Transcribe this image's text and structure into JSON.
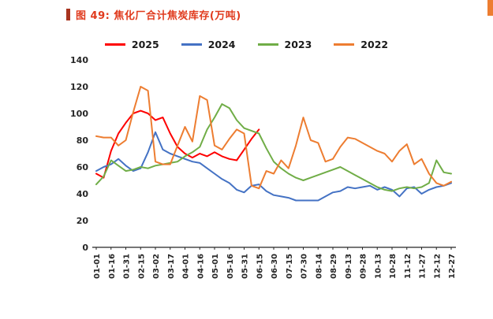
{
  "figure": {
    "title": "图 49: 焦化厂合计焦炭库存(万吨)",
    "title_color": "#e03a1d",
    "accent_bar_color": "#a8341f",
    "corner_bar_color": "#ed7d31"
  },
  "chart_data": {
    "type": "line",
    "title": "图 49: 焦化厂合计焦炭库存(万吨)",
    "xlabel": "",
    "ylabel": "",
    "ylim": [
      0,
      140
    ],
    "yticks": [
      0,
      20,
      40,
      60,
      80,
      100,
      120,
      140
    ],
    "grid": false,
    "legend_position": "top",
    "points_per_label": 2,
    "x_labels": [
      "01-01",
      "01-16",
      "01-31",
      "02-15",
      "03-02",
      "03-17",
      "04-01",
      "04-16",
      "05-01",
      "05-16",
      "05-31",
      "06-15",
      "06-30",
      "07-15",
      "07-30",
      "08-14",
      "08-29",
      "09-13",
      "09-28",
      "10-13",
      "10-28",
      "11-12",
      "11-27",
      "12-12",
      "12-27"
    ],
    "series": [
      {
        "name": "2025",
        "color": "#fe0000",
        "values": [
          55,
          52,
          72,
          85,
          93,
          100,
          102,
          100,
          95,
          97,
          85,
          75,
          70,
          67,
          70,
          68,
          71,
          68,
          66,
          65,
          73,
          81,
          88
        ]
      },
      {
        "name": "2024",
        "color": "#4472c4",
        "values": [
          57,
          60,
          62,
          66,
          61,
          57,
          59,
          71,
          86,
          73,
          70,
          68,
          66,
          64,
          63,
          59,
          55,
          51,
          48,
          43,
          41,
          46,
          47,
          42,
          39,
          38,
          37,
          35,
          35,
          35,
          35,
          38,
          41,
          42,
          45,
          44,
          45,
          46,
          43,
          45,
          43,
          38,
          44,
          45,
          40,
          43,
          45,
          46,
          48
        ]
      },
      {
        "name": "2023",
        "color": "#70ad47",
        "values": [
          47,
          53,
          65,
          61,
          57,
          58,
          60,
          59,
          61,
          62,
          63,
          64,
          68,
          71,
          75,
          88,
          97,
          107,
          104,
          95,
          89,
          87,
          85,
          74,
          64,
          59,
          55,
          52,
          50,
          52,
          54,
          56,
          58,
          60,
          57,
          54,
          51,
          48,
          45,
          43,
          42,
          44,
          45,
          44,
          45,
          48,
          65,
          56,
          55
        ]
      },
      {
        "name": "2022",
        "color": "#ed7d31",
        "values": [
          83,
          82,
          82,
          76,
          80,
          101,
          120,
          117,
          64,
          62,
          62,
          76,
          90,
          79,
          113,
          110,
          76,
          73,
          81,
          88,
          85,
          46,
          44,
          57,
          55,
          65,
          59,
          76,
          97,
          80,
          78,
          64,
          66,
          75,
          82,
          81,
          78,
          75,
          72,
          70,
          64,
          72,
          77,
          62,
          66,
          55,
          48,
          46,
          49
        ]
      }
    ]
  }
}
